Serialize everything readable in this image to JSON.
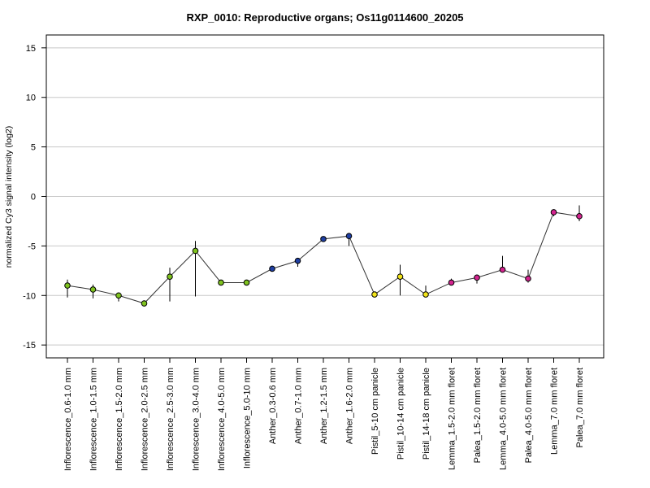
{
  "chart_data": {
    "type": "line",
    "title": "RXP_0010: Reproductive organs; Os11g0114600_20205",
    "xlabel": "",
    "ylabel": "normalized Cy3 signal intensity (log2)",
    "ylim": [
      -16.3,
      16.3
    ],
    "yticks": [
      -15,
      -10,
      -5,
      0,
      5,
      10,
      15
    ],
    "grid": true,
    "legend": "none",
    "categories": [
      "Inflorescence_0.6-1.0 mm",
      "Inflorescence_1.0-1.5 mm",
      "Inflorescence_1.5-2.0 mm",
      "Inflorescence_2.0-2.5 mm",
      "Inflorescence_2.5-3.0 mm",
      "Inflorescence_3.0-4.0 mm",
      "Inflorescence_4.0-5.0 mm",
      "Inflorescence_5.0-10 mm",
      "Anther_0.3-0.6 mm",
      "Anther_0.7-1.0 mm",
      "Anther_1.2-1.5 mm",
      "Anther_1.6-2.0 mm",
      "Pistil_5-10 cm panicle",
      "Pistil_10-14 cm panicle",
      "Pistil_14-18 cm panicle",
      "Lemma_1.5-2.0 mm floret",
      "Palea_1.5-2.0 mm floret",
      "Lemma_4.0-5.0 mm floret",
      "Palea_4.0-5.0 mm floret",
      "Lemma_7.0 mm floret",
      "Palea_7.0 mm floret"
    ],
    "values": [
      -9.0,
      -9.4,
      -10.0,
      -10.8,
      -8.1,
      -5.5,
      -8.7,
      -8.7,
      -7.3,
      -6.5,
      -4.3,
      -4.0,
      -9.9,
      -8.1,
      -9.9,
      -8.7,
      -8.2,
      -7.4,
      -8.3,
      -1.6,
      -2.0
    ],
    "error_low": [
      -10.2,
      -10.3,
      -10.6,
      -11.1,
      -10.6,
      -10.1,
      -8.7,
      -8.9,
      -7.6,
      -7.1,
      -4.5,
      -5.0,
      -10.1,
      -10.0,
      -10.1,
      -8.9,
      -8.8,
      -7.6,
      -8.7,
      -2.0,
      -2.5
    ],
    "error_high": [
      -8.4,
      -8.9,
      -9.7,
      -10.6,
      -7.2,
      -4.5,
      -8.6,
      -8.5,
      -7.0,
      -6.2,
      -4.1,
      -3.8,
      -9.6,
      -6.9,
      -9.0,
      -8.3,
      -7.9,
      -6.0,
      -7.4,
      -1.3,
      -0.9
    ],
    "point_colors": [
      "#7fc31f",
      "#7fc31f",
      "#7fc31f",
      "#7fc31f",
      "#7fc31f",
      "#7fc31f",
      "#7fc31f",
      "#7fc31f",
      "#1f3fa3",
      "#1f3fa3",
      "#1f3fa3",
      "#1f3fa3",
      "#f2e41a",
      "#f2e41a",
      "#f2e41a",
      "#d4248f",
      "#d4248f",
      "#d4248f",
      "#d4248f",
      "#d4248f",
      "#d4248f"
    ],
    "line_color": "#333333",
    "grid_color": "#c8c8c8"
  }
}
